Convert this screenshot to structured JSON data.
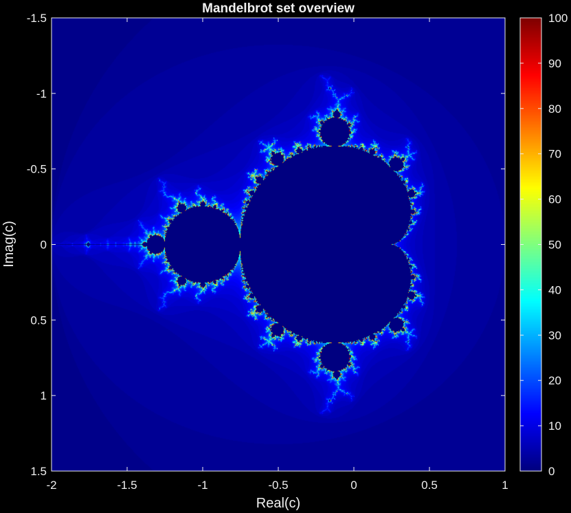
{
  "chart_data": {
    "type": "heatmap",
    "title": "Mandelbrot set overview",
    "xlabel": "Real(c)",
    "ylabel": "Imag(c)",
    "xlim": [
      -2,
      1
    ],
    "ylim": [
      -1.5,
      1.5
    ],
    "y_direction": "reversed",
    "x_ticks": [
      -2,
      -1.5,
      -1,
      -0.5,
      0,
      0.5,
      1
    ],
    "x_tick_labels": [
      "-2",
      "-1.5",
      "-1",
      "-0.5",
      "0",
      "0.5",
      "1"
    ],
    "y_ticks": [
      -1.5,
      -1,
      -0.5,
      0,
      0.5,
      1,
      1.5
    ],
    "y_tick_labels": [
      "-1.5",
      "-1",
      "-0.5",
      "0",
      "0.5",
      "1",
      "1.5"
    ],
    "max_iterations": 100,
    "colormap": "jet",
    "colorbar": {
      "position": "right",
      "limits": [
        0,
        100
      ],
      "ticks": [
        0,
        10,
        20,
        30,
        40,
        50,
        60,
        70,
        80,
        90,
        100
      ],
      "tick_labels": [
        "0",
        "10",
        "20",
        "30",
        "40",
        "50",
        "60",
        "70",
        "80",
        "90",
        "100"
      ]
    },
    "grid": false
  },
  "style": {
    "background": "#000000",
    "axis_color": "#f0f0f0",
    "text_color": "#f0f0f0"
  }
}
